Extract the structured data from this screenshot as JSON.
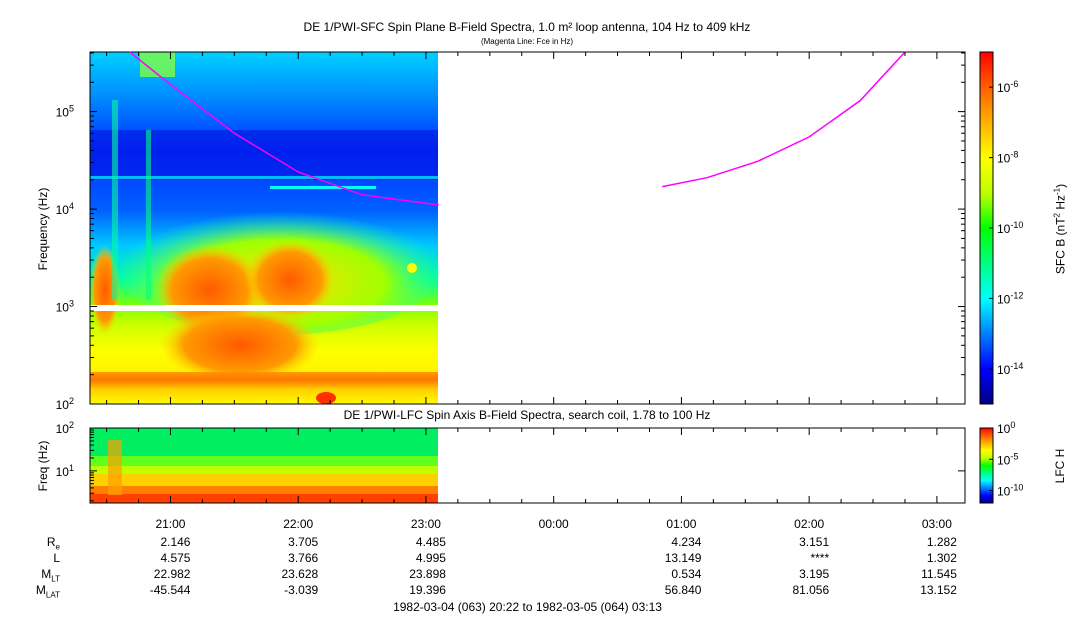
{
  "colors": {
    "background": "#ffffff",
    "fce_line": "#ff00ff",
    "colorbar_stops": [
      "#000080",
      "#0000ff",
      "#0080ff",
      "#00ffff",
      "#00ff80",
      "#00ff00",
      "#c0ff00",
      "#ffff00",
      "#ffb000",
      "#ff6000",
      "#ff0000"
    ]
  },
  "chart_data": [
    {
      "type": "heatmap",
      "title": "DE 1/PWI-SFC  Spin Plane B-Field Spectra, 1.0 m² loop antenna, 104 Hz to 409 kHz",
      "subtitle": "(Magenta Line: Fce in Hz)",
      "ylabel": "Frequency (Hz)",
      "yscale": "log",
      "ylim": [
        100,
        409000
      ],
      "ytick_values": [
        100,
        1000,
        10000,
        100000
      ],
      "ytick_bases": [
        "10",
        "10",
        "10",
        "10"
      ],
      "ytick_exps": [
        "2",
        "3",
        "4",
        "5"
      ],
      "xlim_hours": [
        20.37,
        27.22
      ],
      "data_end_hours": 23.12,
      "colorbar": {
        "label": "SFC B (nT² Hz⁻¹)",
        "label_parts": [
          "SFC B (nT",
          "2",
          " Hz",
          "-1",
          ")"
        ],
        "scale": "log",
        "range": [
          1e-15,
          1e-05
        ],
        "tick_values": [
          1e-14,
          1e-12,
          1e-10,
          1e-08,
          1e-06
        ],
        "tick_bases": [
          "10",
          "10",
          "10",
          "10",
          "10"
        ],
        "tick_exps": [
          "-14",
          "-12",
          "-10",
          "-8",
          "-6"
        ]
      },
      "fce_line": {
        "name": "Fce in Hz",
        "segments": [
          {
            "hours": [
              20.68,
              21.0,
              21.5,
              22.0,
              22.5,
              23.1
            ],
            "hz": [
              409000,
              190000,
              60000,
              24000,
              14000,
              11000
            ]
          },
          {
            "hours": [
              24.85,
              25.2,
              25.6,
              26.0,
              26.4,
              26.75
            ],
            "hz": [
              17000,
              21000,
              31000,
              55000,
              130000,
              409000
            ]
          }
        ]
      }
    },
    {
      "type": "heatmap",
      "title": "DE 1/PWI-LFC  Spin Axis B-Field Spectra, search coil, 1.78 to 100 Hz",
      "ylabel": "Freq (Hz)",
      "yscale": "log",
      "ylim": [
        1.78,
        100
      ],
      "ytick_values": [
        10,
        100
      ],
      "ytick_bases": [
        "10",
        "10"
      ],
      "ytick_exps": [
        "1",
        "2"
      ],
      "xlim_hours": [
        20.37,
        27.22
      ],
      "data_end_hours": 23.12,
      "colorbar": {
        "label": "LFC H",
        "scale": "log",
        "range": [
          1e-12,
          1
        ],
        "tick_values": [
          1,
          1e-05,
          1e-10
        ],
        "tick_bases": [
          "10",
          "10",
          "10"
        ],
        "tick_exps": [
          "0",
          "-5",
          "-10"
        ]
      }
    }
  ],
  "x_axis": {
    "tick_hours": [
      21,
      22,
      23,
      24,
      25,
      26,
      27
    ],
    "tick_labels": [
      "21:00",
      "22:00",
      "23:00",
      "00:00",
      "01:00",
      "02:00",
      "03:00"
    ],
    "minor_tick_step_hours": 0.25
  },
  "ephemeris": {
    "rows": [
      {
        "label_base": "R",
        "label_sub": "e",
        "values": [
          "2.146",
          "3.705",
          "4.485",
          "",
          "4.234",
          "3.151",
          "1.282"
        ]
      },
      {
        "label_base": "L",
        "label_sub": "",
        "values": [
          "4.575",
          "3.766",
          "4.995",
          "",
          "13.149",
          "****",
          "1.302"
        ]
      },
      {
        "label_base": "M",
        "label_sub": "LT",
        "values": [
          "22.982",
          "23.628",
          "23.898",
          "",
          "0.534",
          "3.195",
          "11.545"
        ]
      },
      {
        "label_base": "M",
        "label_sub": "LAT",
        "values": [
          "-45.544",
          "-3.039",
          "19.396",
          "",
          "56.840",
          "81.056",
          "13.152"
        ]
      }
    ]
  },
  "time_range": "1982-03-04 (063) 20:22 to 1982-03-05 (064) 03:13"
}
